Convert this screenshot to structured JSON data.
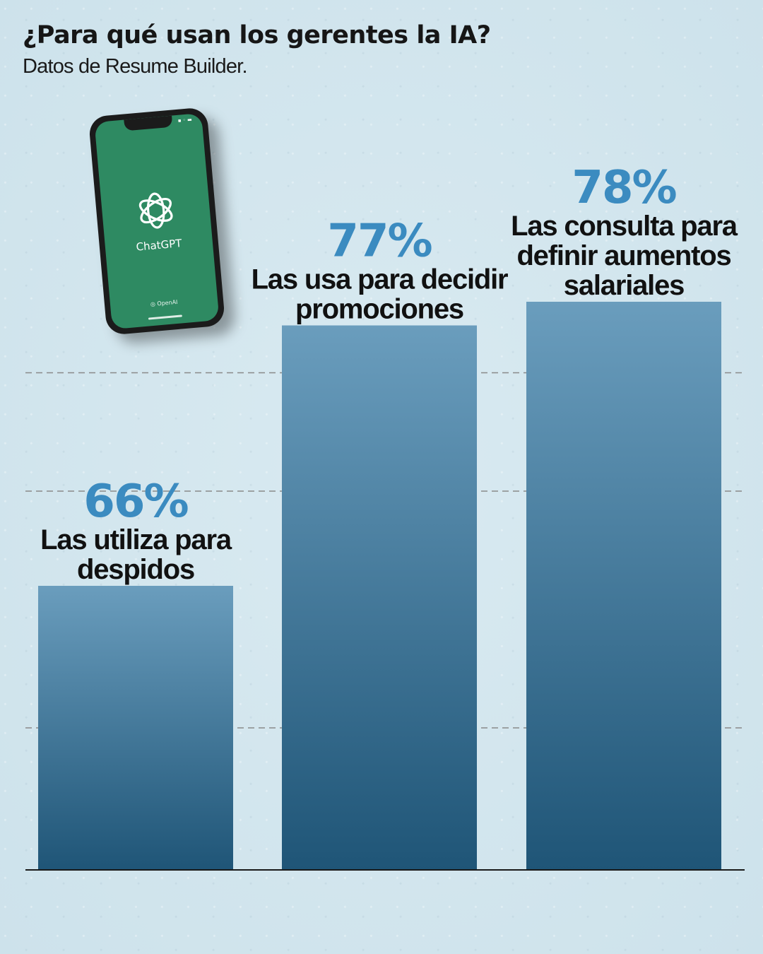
{
  "header": {
    "title": "¿Para qué usan los gerentes la IA?",
    "subtitle": "Datos de Resume Builder."
  },
  "phone": {
    "app_name": "ChatGPT",
    "brand": "OpenAI",
    "logo_icon": "openai-logo-icon",
    "screen_color": "#2e8a62"
  },
  "colors": {
    "bar_top": "#6a9dbd",
    "bar_bottom": "#1f5577",
    "value_label": "#3b8bc0",
    "gridline": "#8a8a8a"
  },
  "chart_data": {
    "type": "bar",
    "categories": [
      "Las utiliza para despidos",
      "Las usa para decidir promociones",
      "Las consulta para definir aumentos salariales"
    ],
    "category_lines": [
      [
        "Las utiliza para",
        "despidos"
      ],
      [
        "Las usa para decidir",
        "promociones"
      ],
      [
        "Las consulta para",
        "definir aumentos",
        "salariales"
      ]
    ],
    "values": [
      66,
      77,
      78
    ],
    "value_labels": [
      "66%",
      "77%",
      "78%"
    ],
    "title": "¿Para qué usan los gerentes la IA?",
    "xlabel": "",
    "ylabel": "",
    "ylim": [
      54,
      80
    ],
    "gridlines": [
      60,
      70,
      75
    ],
    "grid": "dashed horizontal",
    "legend": "none"
  }
}
